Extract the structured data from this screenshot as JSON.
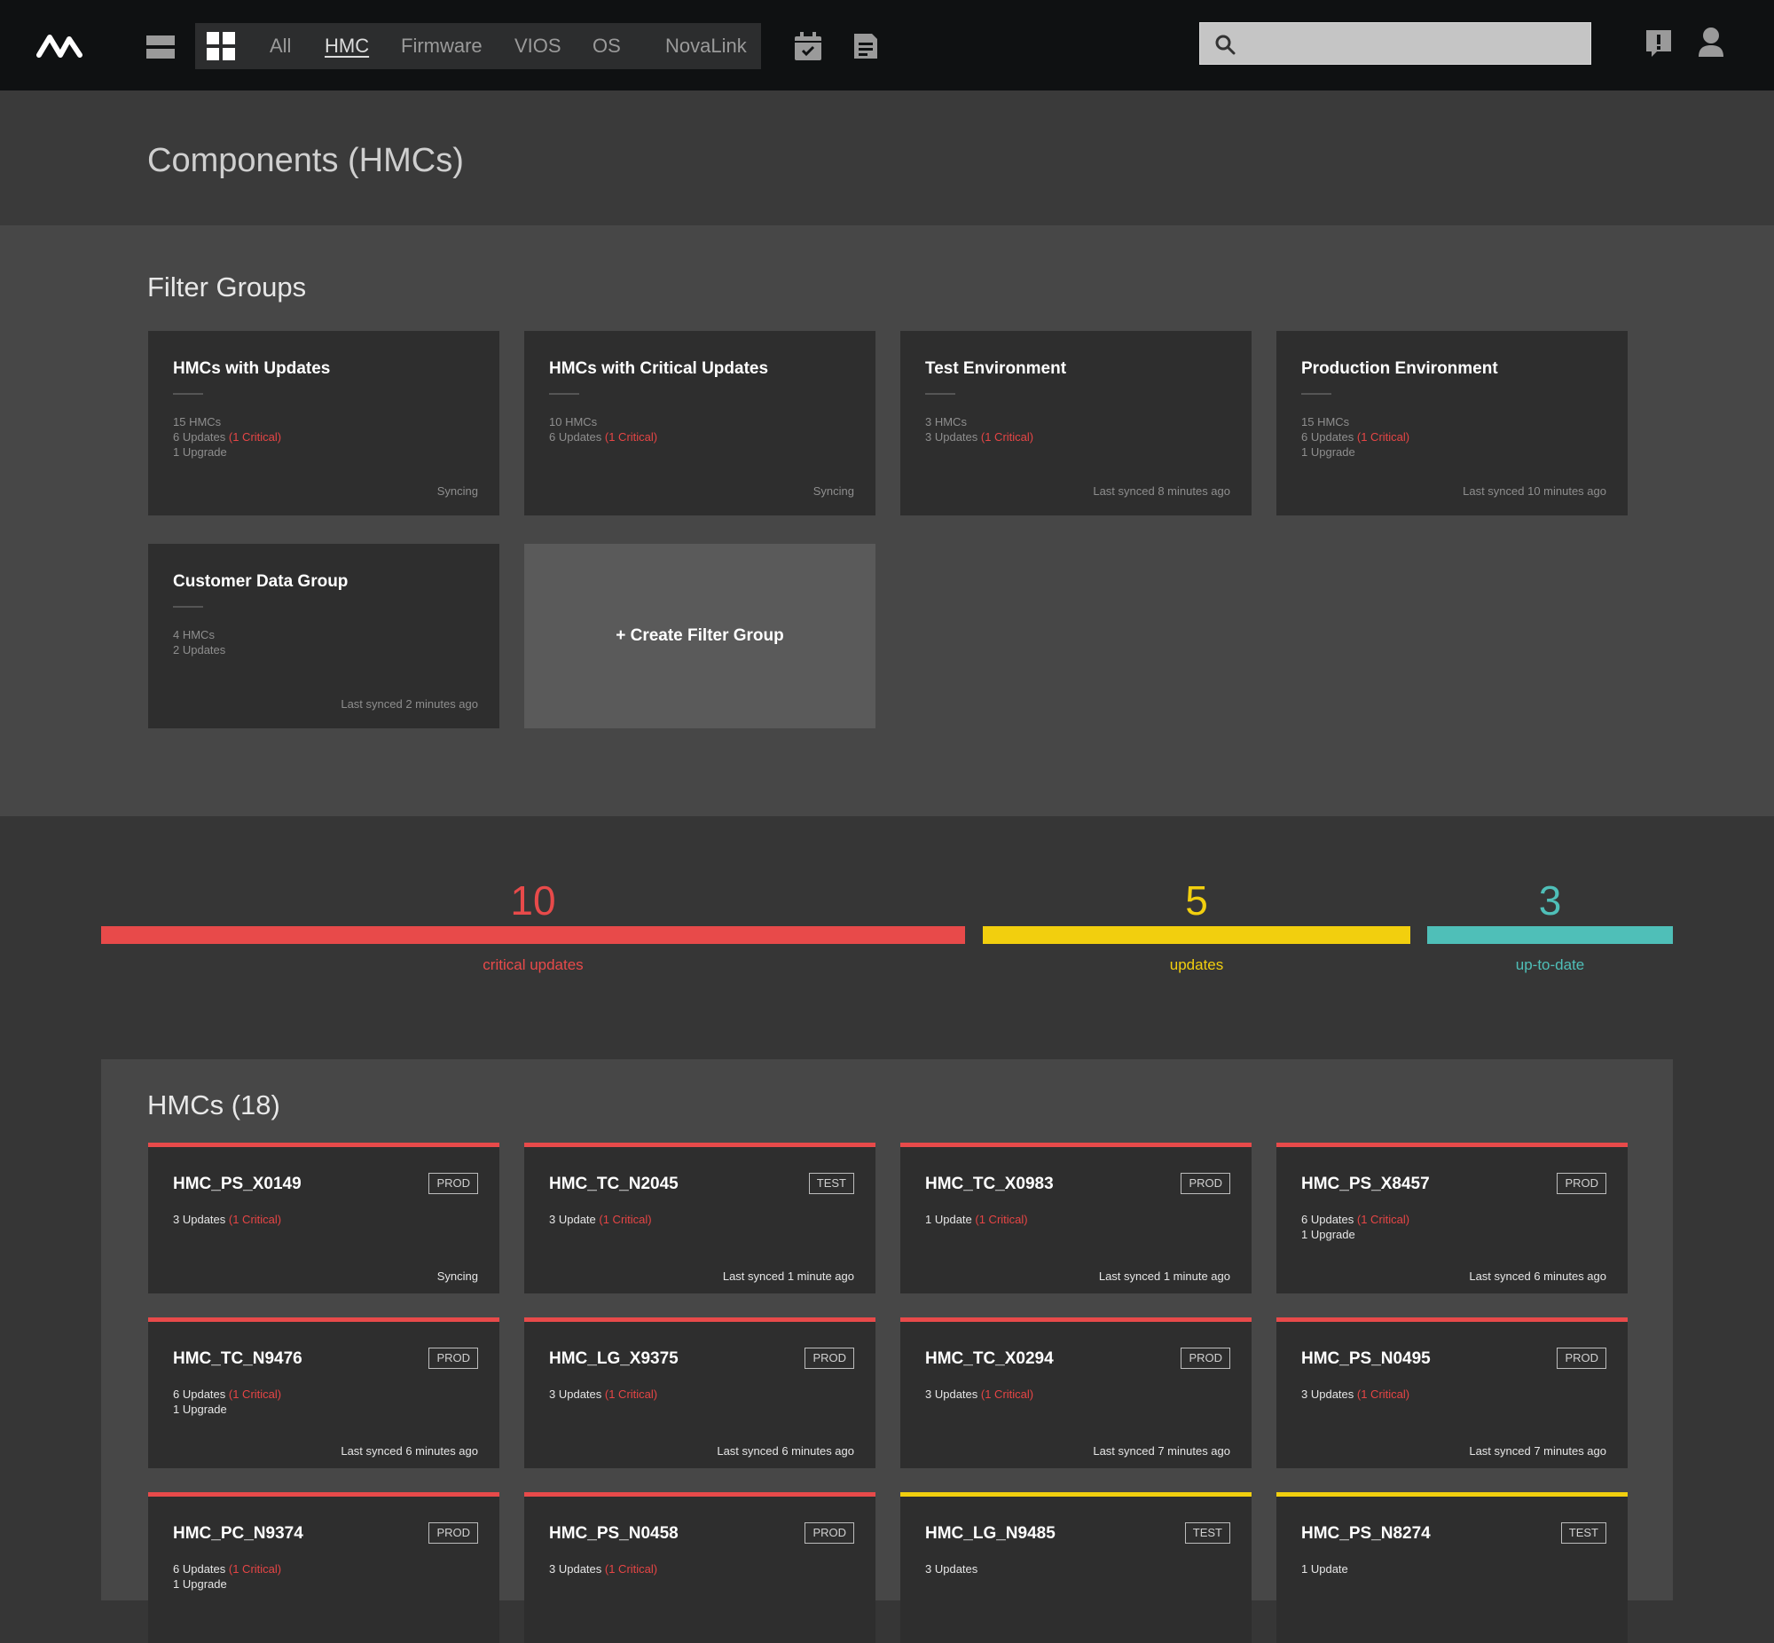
{
  "nav": {
    "tabs": [
      "All",
      "HMC",
      "Firmware",
      "VIOS",
      "OS",
      "NovaLink"
    ],
    "active_tab": "HMC",
    "search_placeholder": ""
  },
  "page_title": "Components (HMCs)",
  "filter_groups": {
    "title": "Filter Groups",
    "cards": [
      {
        "title": "HMCs with Updates",
        "hmcs": "15 HMCs",
        "updates": "6 Updates",
        "critical": "(1 Critical)",
        "upgrade": "1 Upgrade",
        "status": "Syncing"
      },
      {
        "title": "HMCs with Critical Updates",
        "hmcs": "10 HMCs",
        "updates": "6 Updates",
        "critical": "(1 Critical)",
        "upgrade": "",
        "status": "Syncing"
      },
      {
        "title": "Test Environment",
        "hmcs": "3 HMCs",
        "updates": "3 Updates",
        "critical": "(1 Critical)",
        "upgrade": "",
        "status": "Last synced 8 minutes ago"
      },
      {
        "title": "Production Environment",
        "hmcs": "15 HMCs",
        "updates": "6 Updates",
        "critical": "(1 Critical)",
        "upgrade": "1 Upgrade",
        "status": "Last synced 10 minutes ago"
      },
      {
        "title": "Customer Data Group",
        "hmcs": "4 HMCs",
        "updates": "2 Updates",
        "critical": "",
        "upgrade": "",
        "status": "Last synced 2 minutes ago"
      }
    ],
    "create_label": "+ Create Filter Group"
  },
  "summary": {
    "critical": {
      "count": "10",
      "label": "critical updates",
      "color": "#e84a4a"
    },
    "updates": {
      "count": "5",
      "label": "updates",
      "color": "#f2cf0e"
    },
    "uptodate": {
      "count": "3",
      "label": "up-to-date",
      "color": "#4fbfb8"
    }
  },
  "hmcs": {
    "title": "HMCs (18)",
    "items": [
      {
        "name": "HMC_PS_X0149",
        "badge": "PROD",
        "updates": "3 Updates",
        "critical": "(1 Critical)",
        "upgrade": "",
        "status": "Syncing",
        "level": "critical"
      },
      {
        "name": "HMC_TC_N2045",
        "badge": "TEST",
        "updates": "3 Update",
        "critical": "(1 Critical)",
        "upgrade": "",
        "status": "Last synced 1 minute ago",
        "level": "critical"
      },
      {
        "name": "HMC_TC_X0983",
        "badge": "PROD",
        "updates": "1 Update",
        "critical": "(1 Critical)",
        "upgrade": "",
        "status": "Last synced 1 minute ago",
        "level": "critical"
      },
      {
        "name": "HMC_PS_X8457",
        "badge": "PROD",
        "updates": "6 Updates",
        "critical": "(1 Critical)",
        "upgrade": "1 Upgrade",
        "status": "Last synced 6 minutes ago",
        "level": "critical"
      },
      {
        "name": "HMC_TC_N9476",
        "badge": "PROD",
        "updates": "6 Updates",
        "critical": "(1 Critical)",
        "upgrade": "1 Upgrade",
        "status": "Last synced 6 minutes ago",
        "level": "critical"
      },
      {
        "name": "HMC_LG_X9375",
        "badge": "PROD",
        "updates": "3 Updates",
        "critical": "(1 Critical)",
        "upgrade": "",
        "status": "Last synced 6 minutes ago",
        "level": "critical"
      },
      {
        "name": "HMC_TC_X0294",
        "badge": "PROD",
        "updates": "3 Updates",
        "critical": "(1 Critical)",
        "upgrade": "",
        "status": "Last synced 7 minutes ago",
        "level": "critical"
      },
      {
        "name": "HMC_PS_N0495",
        "badge": "PROD",
        "updates": "3 Updates",
        "critical": "(1 Critical)",
        "upgrade": "",
        "status": "Last synced 7 minutes ago",
        "level": "critical"
      },
      {
        "name": "HMC_PC_N9374",
        "badge": "PROD",
        "updates": "6 Updates",
        "critical": "(1 Critical)",
        "upgrade": "1 Upgrade",
        "status": "",
        "level": "critical"
      },
      {
        "name": "HMC_PS_N0458",
        "badge": "PROD",
        "updates": "3 Updates",
        "critical": "(1 Critical)",
        "upgrade": "",
        "status": "",
        "level": "critical"
      },
      {
        "name": "HMC_LG_N9485",
        "badge": "TEST",
        "updates": "3 Updates",
        "critical": "",
        "upgrade": "",
        "status": "",
        "level": "update"
      },
      {
        "name": "HMC_PS_N8274",
        "badge": "TEST",
        "updates": "1 Update",
        "critical": "",
        "upgrade": "",
        "status": "",
        "level": "update"
      }
    ]
  },
  "icons": [
    "logo-icon",
    "list-view-icon",
    "grid-view-icon",
    "calendar-check-icon",
    "document-icon",
    "search-icon",
    "alert-icon",
    "user-icon"
  ]
}
